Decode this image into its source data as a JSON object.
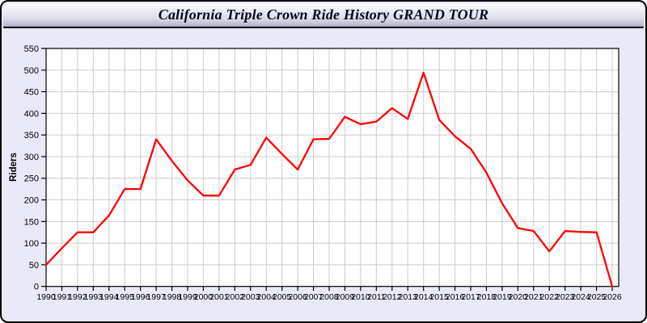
{
  "header": {
    "title": "California Triple Crown Ride History GRAND TOUR"
  },
  "chart_data": {
    "type": "line",
    "title": "California Triple Crown Ride History GRAND TOUR",
    "xlabel": "",
    "ylabel": "Riders",
    "ylim": [
      0,
      550
    ],
    "ytick_step": 50,
    "grid": true,
    "legend": "none",
    "line_color": "#ff0000",
    "plot_bg": "#ffffff",
    "grid_color": "#cbcbcb",
    "x": [
      1990,
      1991,
      1992,
      1993,
      1994,
      1995,
      1996,
      1997,
      1998,
      1999,
      2000,
      2001,
      2002,
      2003,
      2004,
      2005,
      2006,
      2007,
      2008,
      2009,
      2010,
      2011,
      2012,
      2013,
      2014,
      2015,
      2016,
      2017,
      2018,
      2019,
      2020,
      2021,
      2022,
      2023,
      2024,
      2025,
      2026
    ],
    "values": [
      50,
      88,
      125,
      125,
      164,
      225,
      225,
      340,
      290,
      245,
      210,
      210,
      270,
      281,
      344,
      306,
      270,
      340,
      341,
      392,
      375,
      381,
      412,
      387,
      494,
      385,
      347,
      318,
      263,
      192,
      135,
      128,
      81,
      128,
      126,
      125,
      0
    ]
  },
  "colors": {
    "panel_bg": "#e9e9f8",
    "border": "#000000",
    "title_text": "#06061c"
  }
}
